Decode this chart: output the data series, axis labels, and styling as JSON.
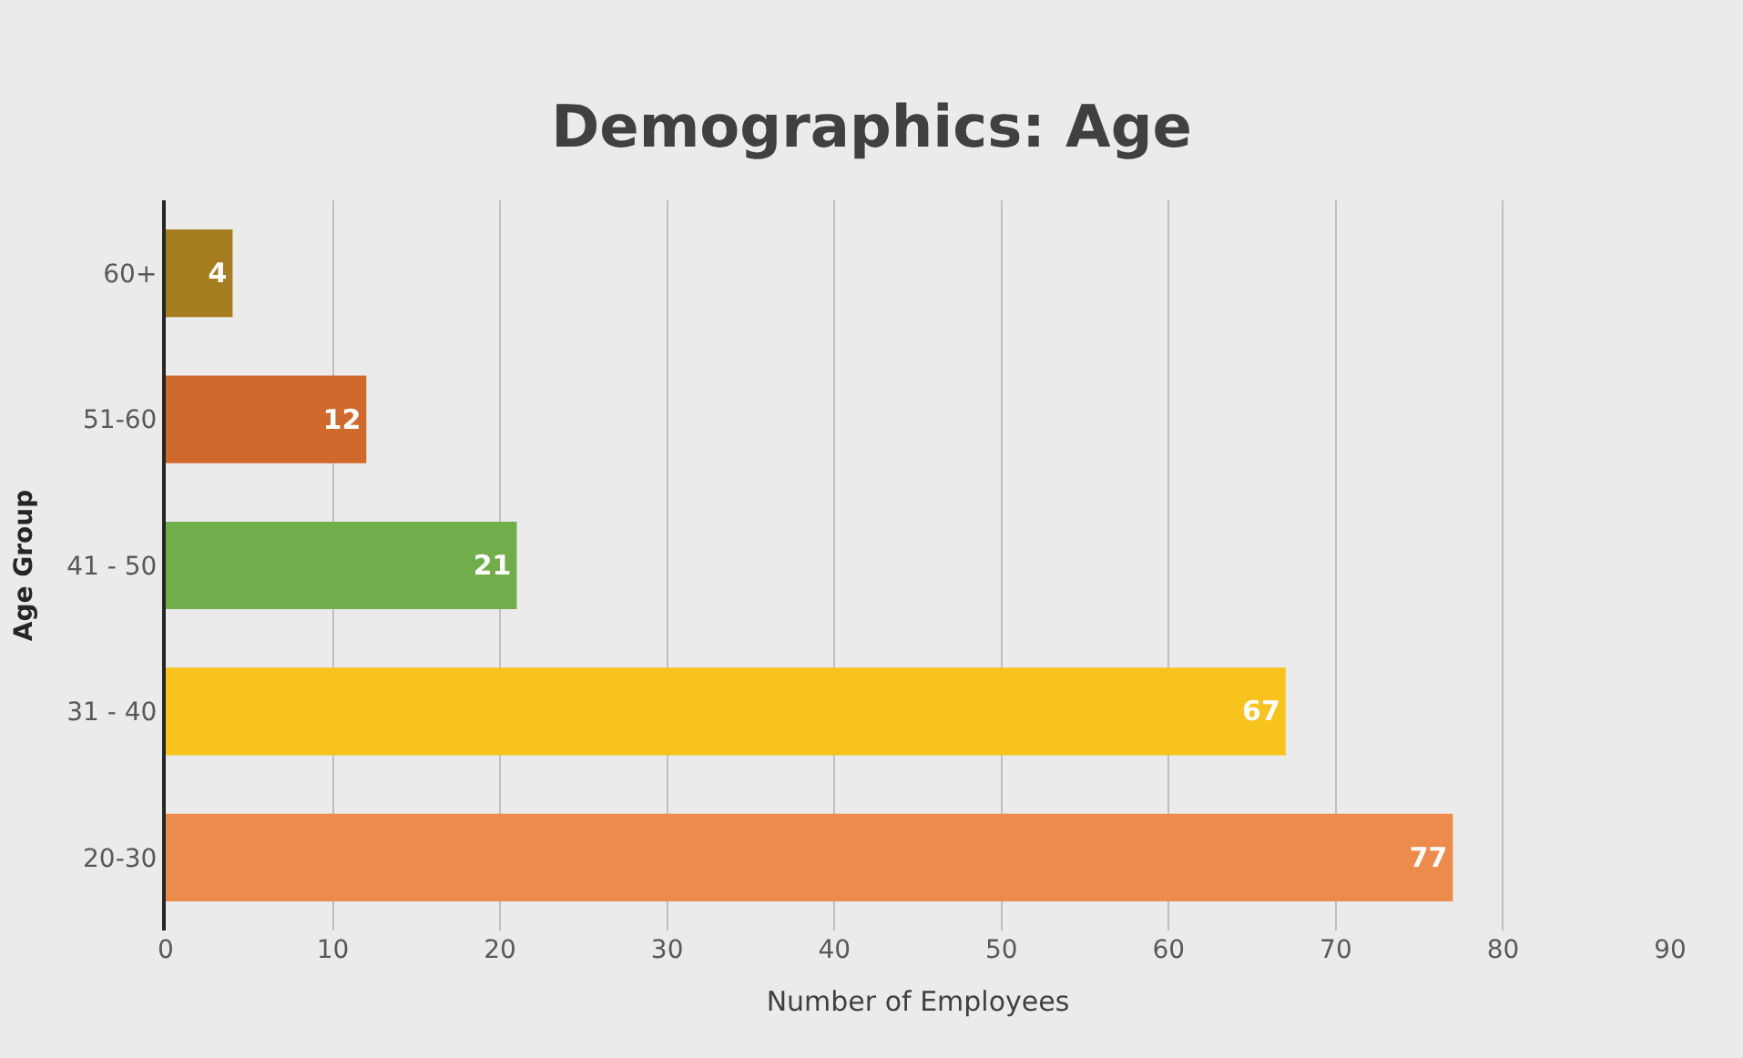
{
  "chart_data": {
    "type": "bar",
    "orientation": "horizontal",
    "title": "Demographics: Age",
    "xlabel": "Number of Employees",
    "ylabel": "Age Group",
    "categories": [
      "60+",
      "51-60",
      "41 - 50",
      "31 - 40",
      "20-30"
    ],
    "values": [
      4,
      12,
      21,
      67,
      77
    ],
    "colors": [
      "#a57d1f",
      "#cf6a2c",
      "#72ad4c",
      "#f7c31c",
      "#ec8b4b"
    ],
    "xlim": [
      0,
      90
    ],
    "xticks": [
      0,
      10,
      20,
      30,
      40,
      50,
      60,
      70,
      80,
      90
    ],
    "grid": "x",
    "data_labels": true
  }
}
